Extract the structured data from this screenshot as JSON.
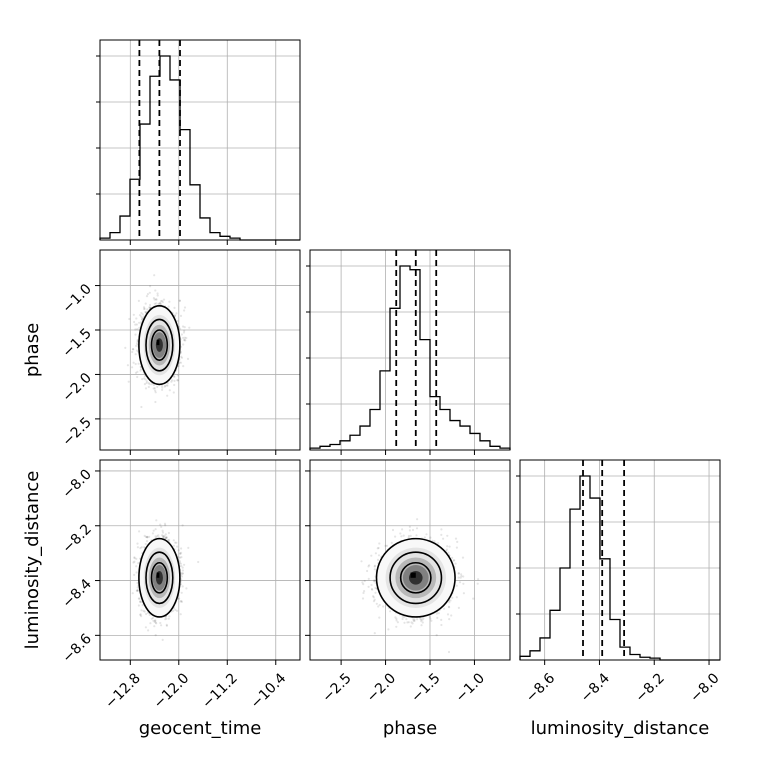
{
  "chart_data": {
    "type": "corner",
    "parameters": [
      "geocent_time",
      "phase",
      "luminosity_distance"
    ],
    "axis_labels": {
      "x": [
        "geocent_time",
        "phase",
        "luminosity_distance"
      ],
      "y": [
        "",
        "phase",
        "luminosity_distance"
      ]
    },
    "ranges": {
      "geocent_time": [
        -13.3,
        -10.0
      ],
      "phase": [
        -2.85,
        -0.6
      ],
      "luminosity_distance": [
        -8.69,
        -7.96
      ]
    },
    "ticks": {
      "geocent_time": {
        "values": [
          -12.8,
          -12.0,
          -11.2,
          -10.4
        ],
        "labels": [
          "−12.8",
          "−12.0",
          "−11.2",
          "−10.4"
        ]
      },
      "phase": {
        "values": [
          -2.5,
          -2.0,
          -1.5,
          -1.0
        ],
        "labels": [
          "−2.5",
          "−2.0",
          "−1.5",
          "−1.0"
        ]
      },
      "luminosity_distance": {
        "values": [
          -8.6,
          -8.4,
          -8.2,
          -8.0
        ],
        "labels": [
          "−8.6",
          "−8.4",
          "−8.2",
          "−8.0"
        ]
      }
    },
    "quantiles": {
      "geocent_time": [
        -12.65,
        -12.32,
        -11.98
      ],
      "phase": [
        -1.88,
        -1.66,
        -1.43
      ],
      "luminosity_distance": [
        -8.46,
        -8.39,
        -8.31
      ]
    },
    "histograms": {
      "geocent_time": {
        "edges": [
          -13.3,
          -13.135,
          -12.97,
          -12.805,
          -12.64,
          -12.475,
          -12.31,
          -12.145,
          -11.98,
          -11.815,
          -11.65,
          -11.485,
          -11.32,
          -11.155,
          -10.99,
          -10.825,
          -10.66,
          -10.495,
          -10.33,
          -10.165,
          -10.0
        ],
        "counts": [
          0.01,
          0.04,
          0.13,
          0.33,
          0.63,
          0.89,
          1.0,
          0.87,
          0.6,
          0.3,
          0.12,
          0.04,
          0.02,
          0.01,
          0.0,
          0.0,
          0.0,
          0.0,
          0.0,
          0.0
        ]
      },
      "phase": {
        "edges": [
          -2.85,
          -2.7375,
          -2.625,
          -2.5125,
          -2.4,
          -2.2875,
          -2.175,
          -2.0625,
          -1.95,
          -1.8375,
          -1.725,
          -1.6125,
          -1.5,
          -1.3875,
          -1.275,
          -1.1625,
          -1.05,
          -0.9375,
          -0.825,
          -0.7125,
          -0.6
        ],
        "counts": [
          0.01,
          0.02,
          0.03,
          0.05,
          0.08,
          0.13,
          0.22,
          0.43,
          0.77,
          1.0,
          0.98,
          0.6,
          0.29,
          0.22,
          0.16,
          0.13,
          0.09,
          0.05,
          0.02,
          0.01
        ]
      },
      "luminosity_distance": {
        "edges": [
          -8.69,
          -8.6535,
          -8.617,
          -8.5805,
          -8.544,
          -8.5075,
          -8.471,
          -8.4345,
          -8.398,
          -8.3615,
          -8.325,
          -8.2885,
          -8.252,
          -8.2155,
          -8.179,
          -8.1425,
          -8.106,
          -8.0695,
          -8.033,
          -7.9965,
          -7.96
        ],
        "counts": [
          0.02,
          0.05,
          0.12,
          0.27,
          0.5,
          0.82,
          1.0,
          0.88,
          0.55,
          0.22,
          0.07,
          0.03,
          0.015,
          0.01,
          0.0,
          0.0,
          0.0,
          0.0,
          0.0,
          0.0
        ]
      }
    },
    "joint_peaks": {
      "phase_vs_geocent_time": {
        "x": -12.32,
        "y": -1.67
      },
      "luminosity_distance_vs_geocent_time": {
        "x": -12.32,
        "y": -8.39
      },
      "luminosity_distance_vs_phase": {
        "x": -1.66,
        "y": -8.39
      }
    },
    "grid": true
  }
}
